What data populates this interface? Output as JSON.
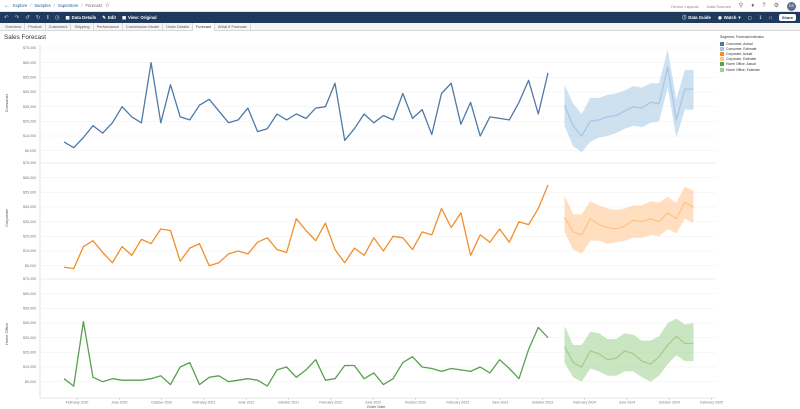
{
  "topbar": {
    "breadcrumbs": [
      "Explore",
      "Samples",
      "Superstore",
      "Forecast"
    ],
    "device_layouts": "Device Layouts",
    "data_sources": "Data Sources",
    "avatar": "DS"
  },
  "toolbar": {
    "data_details": "Data Details",
    "edit": "Edit",
    "view_original": "View: Original",
    "data_guide": "Data Guide",
    "watch": "Watch",
    "share": "Share"
  },
  "tabs": [
    "Overview",
    "Product",
    "Customers",
    "Shipping",
    "Performance",
    "Commission Model",
    "Order Details",
    "Forecast",
    "What If Forecast"
  ],
  "active_tab": 7,
  "title": "Sales Forecast",
  "legend": {
    "title": "Segment, Forecast indicator",
    "items": [
      {
        "label": "Consumer, Actual",
        "color": "#4e79a7"
      },
      {
        "label": "Consumer, Estimate",
        "color": "#a6c8e6"
      },
      {
        "label": "Corporate, Actual",
        "color": "#f28e2b"
      },
      {
        "label": "Corporate, Estimate",
        "color": "#ffc48a"
      },
      {
        "label": "Home Office, Actual",
        "color": "#59a14f"
      },
      {
        "label": "Home Office, Estimate",
        "color": "#9fd08f"
      }
    ]
  },
  "chart_data": {
    "type": "line",
    "xlabel": "Order Date",
    "x_ticks": [
      "February 2020",
      "June 2020",
      "October 2020",
      "February 2021",
      "June 2021",
      "October 2021",
      "February 2022",
      "June 2022",
      "October 2022",
      "February 2023",
      "June 2023",
      "October 2023",
      "February 2024",
      "June 2024",
      "October 2024",
      "February 2025"
    ],
    "ylim": [
      0,
      75000
    ],
    "y_ticks": [
      "$5,000",
      "$15,000",
      "$25,000",
      "$35,000",
      "$45,000",
      "$55,000",
      "$65,000",
      "$75,000"
    ],
    "panes": [
      {
        "label": "Consumer",
        "actual_color": "#4e79a7",
        "estimate_color": "#a6c8e6",
        "actual": [
          11000,
          7000,
          14000,
          22000,
          17000,
          24000,
          35000,
          28000,
          24000,
          65000,
          24000,
          50000,
          28000,
          26000,
          36000,
          40000,
          32000,
          24000,
          26000,
          34000,
          18000,
          20000,
          30000,
          26000,
          30000,
          27000,
          34000,
          35000,
          51000,
          12000,
          20000,
          30000,
          24000,
          29000,
          26000,
          44000,
          27000,
          33000,
          16000,
          44000,
          51000,
          23000,
          38000,
          15000,
          28000,
          27000,
          26000,
          38000,
          53000,
          30000,
          58000
        ],
        "estimate": [
          36000,
          22000,
          15000,
          25000,
          26000,
          28000,
          29000,
          32000,
          35000,
          34000,
          38000,
          37000,
          62000,
          26000,
          47000,
          47000
        ],
        "estimate_low": [
          22000,
          8000,
          4000,
          11000,
          14000,
          15000,
          17000,
          20000,
          22000,
          21000,
          24000,
          25000,
          48000,
          14000,
          33000,
          33000
        ],
        "estimate_high": [
          50000,
          37000,
          30000,
          41000,
          41000,
          43000,
          44000,
          46000,
          49000,
          48000,
          51000,
          51000,
          74000,
          40000,
          60000,
          60000
        ]
      },
      {
        "label": "Corporate",
        "actual_color": "#f28e2b",
        "estimate_color": "#ffc48a",
        "actual": [
          4000,
          3000,
          18000,
          22000,
          14000,
          7000,
          18000,
          12000,
          23000,
          20000,
          30000,
          29000,
          8000,
          17000,
          20000,
          5000,
          7000,
          13000,
          15000,
          13000,
          21000,
          24000,
          16000,
          14000,
          37000,
          29000,
          22000,
          34000,
          16000,
          7000,
          17000,
          12000,
          24000,
          15000,
          25000,
          24000,
          16000,
          28000,
          26000,
          44000,
          31000,
          41000,
          12000,
          26000,
          21000,
          30000,
          21000,
          35000,
          33000,
          44000,
          60000
        ],
        "estimate": [
          38000,
          28000,
          26000,
          37000,
          33000,
          31000,
          30000,
          32000,
          36000,
          35000,
          37000,
          35000,
          41000,
          37000,
          48000,
          45000
        ],
        "estimate_low": [
          28000,
          16000,
          13000,
          22000,
          22000,
          20000,
          21000,
          22000,
          24000,
          24000,
          26000,
          25000,
          30000,
          27000,
          37000,
          34000
        ],
        "estimate_high": [
          53000,
          40000,
          40000,
          49000,
          46000,
          44000,
          43000,
          44000,
          46000,
          46000,
          49000,
          48000,
          52000,
          48000,
          59000,
          56000
        ]
      },
      {
        "label": "Home Office",
        "actual_color": "#59a14f",
        "estimate_color": "#9fd08f",
        "actual": [
          7000,
          2000,
          46000,
          8000,
          5000,
          7000,
          6000,
          6000,
          6000,
          7000,
          9000,
          3000,
          15000,
          18000,
          3000,
          8000,
          9000,
          5000,
          6000,
          7000,
          6000,
          2000,
          13000,
          15000,
          8000,
          13000,
          20000,
          6000,
          7000,
          16000,
          16000,
          7000,
          11000,
          3000,
          7000,
          18000,
          22000,
          15000,
          14000,
          12000,
          14000,
          13000,
          12000,
          15000,
          11000,
          20000,
          14000,
          7000,
          27000,
          42000,
          35000
        ],
        "estimate": [
          29000,
          18000,
          15000,
          26000,
          24000,
          20000,
          21000,
          26000,
          24000,
          19000,
          17000,
          22000,
          30000,
          36000,
          31000,
          31000
        ],
        "estimate_low": [
          18000,
          8000,
          5000,
          14000,
          12000,
          9000,
          9000,
          12000,
          12000,
          8000,
          5000,
          9000,
          17000,
          23000,
          19000,
          19000
        ],
        "estimate_high": [
          43000,
          30000,
          30000,
          39000,
          38000,
          34000,
          34000,
          38000,
          37000,
          33000,
          33000,
          36000,
          45000,
          48000,
          44000,
          45000
        ]
      }
    ]
  }
}
